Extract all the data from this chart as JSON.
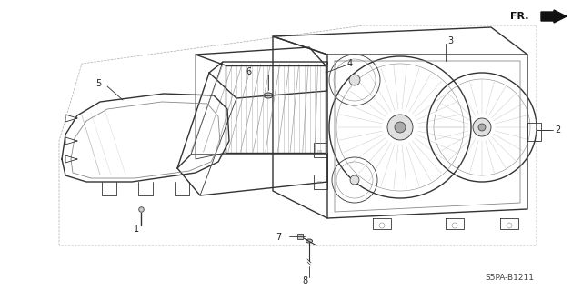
{
  "bg_color": "#ffffff",
  "line_color": "#333333",
  "light_line": "#888888",
  "dashed_line": "#aaaaaa",
  "fig_width": 6.4,
  "fig_height": 3.19,
  "dpi": 100,
  "diagram_code": "S5PA-B1211",
  "fr_label": "FR.",
  "lw_main": 1.0,
  "lw_thin": 0.6,
  "lw_dash": 0.5,
  "font_size": 7.0
}
